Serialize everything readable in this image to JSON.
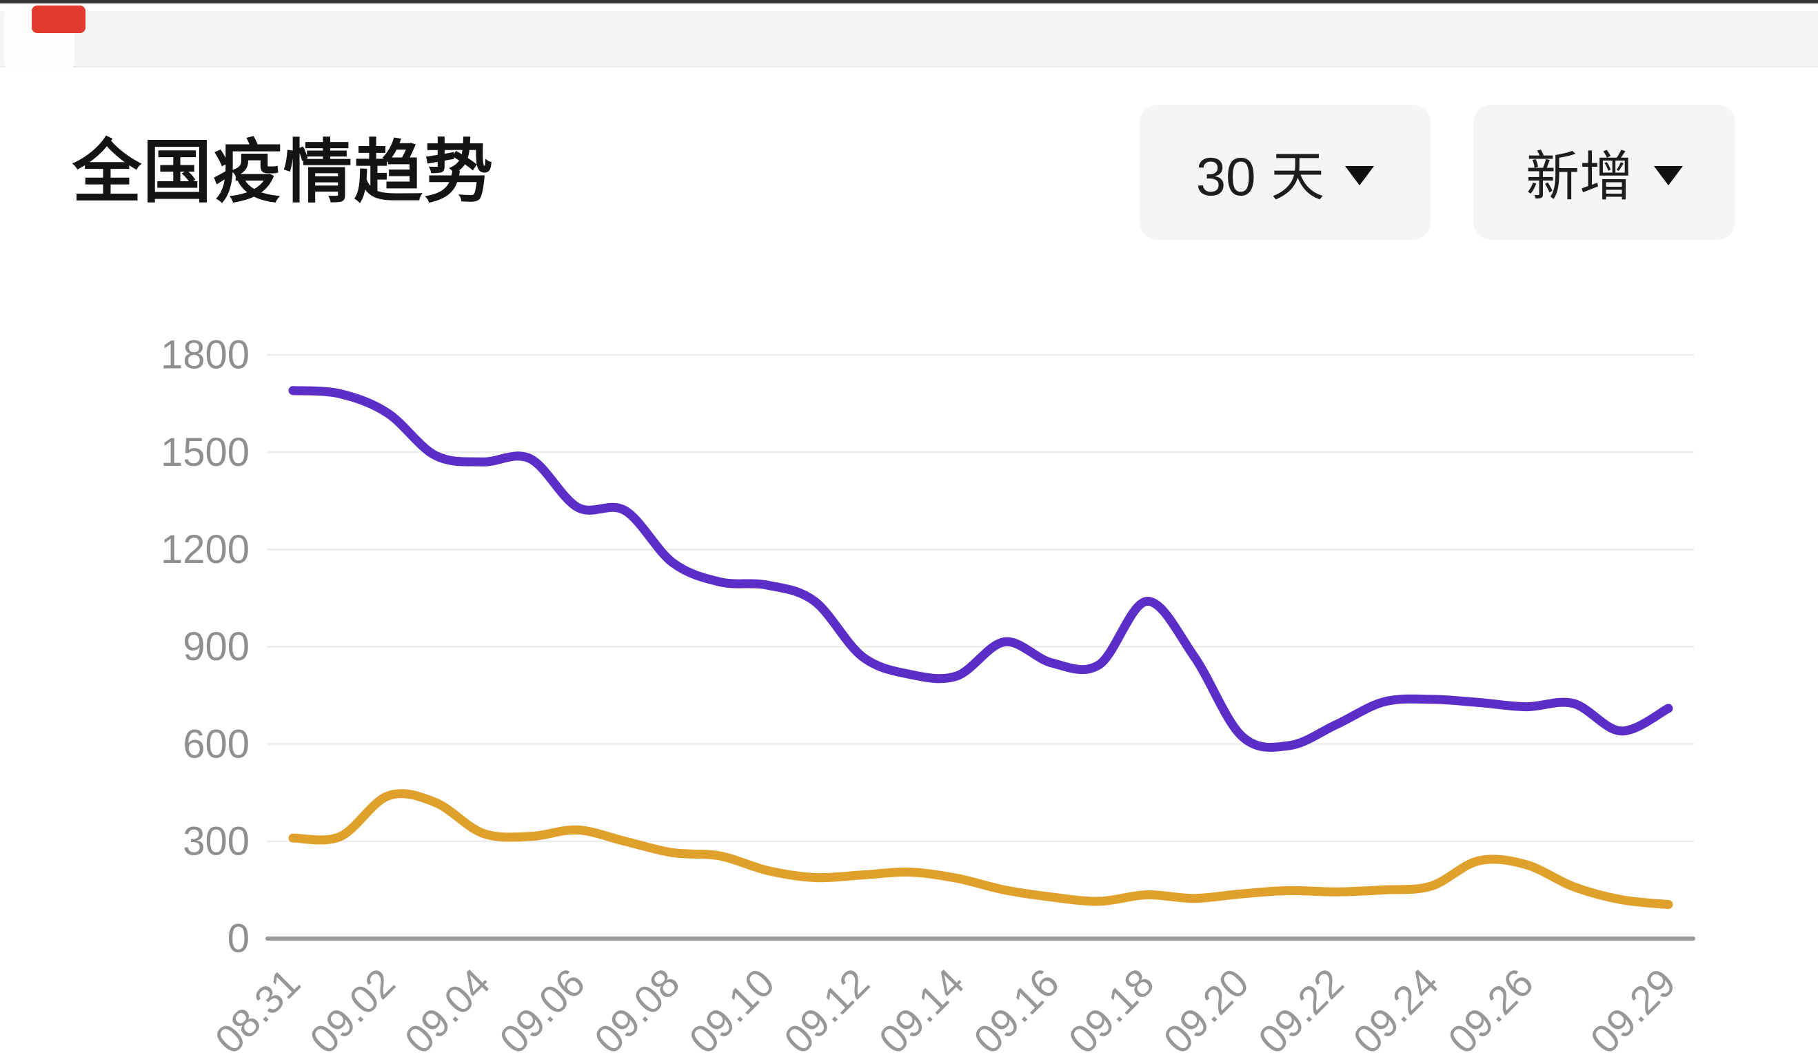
{
  "top_bar": {
    "badge_color": "#e23a2f"
  },
  "header": {
    "title": "全国疫情趋势",
    "range_button": {
      "label": "30 天",
      "icon": "caret-down"
    },
    "metric_button": {
      "label": "新增",
      "icon": "caret-down"
    }
  },
  "chart_data": {
    "type": "line",
    "title": "全国疫情趋势",
    "x": [
      "08.31",
      "09.01",
      "09.02",
      "09.03",
      "09.04",
      "09.05",
      "09.06",
      "09.07",
      "09.08",
      "09.09",
      "09.10",
      "09.11",
      "09.12",
      "09.13",
      "09.14",
      "09.15",
      "09.16",
      "09.17",
      "09.18",
      "09.19",
      "09.20",
      "09.21",
      "09.22",
      "09.23",
      "09.24",
      "09.25",
      "09.26",
      "09.27",
      "09.28",
      "09.29"
    ],
    "x_tick_labels": [
      "08.31",
      "09.02",
      "09.04",
      "09.06",
      "09.08",
      "09.10",
      "09.12",
      "09.14",
      "09.16",
      "09.18",
      "09.20",
      "09.22",
      "09.24",
      "09.26",
      "09.29"
    ],
    "x_tick_indices": [
      0,
      2,
      4,
      6,
      8,
      10,
      12,
      14,
      16,
      18,
      20,
      22,
      24,
      26,
      29
    ],
    "series": [
      {
        "name": "purple-series",
        "color": "#5b2ec8",
        "values": [
          1690,
          1680,
          1620,
          1490,
          1470,
          1480,
          1330,
          1320,
          1160,
          1100,
          1090,
          1040,
          870,
          815,
          810,
          915,
          850,
          845,
          1040,
          870,
          625,
          595,
          660,
          730,
          738,
          728,
          715,
          725,
          640,
          710
        ]
      },
      {
        "name": "orange-series",
        "color": "#dfa02c",
        "values": [
          310,
          315,
          440,
          420,
          325,
          315,
          335,
          300,
          265,
          255,
          210,
          188,
          196,
          205,
          186,
          150,
          128,
          115,
          135,
          124,
          138,
          148,
          144,
          150,
          162,
          240,
          228,
          160,
          120,
          105
        ]
      }
    ],
    "ylim": [
      0,
      1800
    ],
    "y_ticks": [
      0,
      300,
      600,
      900,
      1200,
      1500,
      1800
    ],
    "grid": true,
    "legend": "none",
    "x_label_rotation_deg": -45,
    "grid_color": "#ececec",
    "axis_color": "#9a9a9a",
    "label_color": "#949494"
  }
}
